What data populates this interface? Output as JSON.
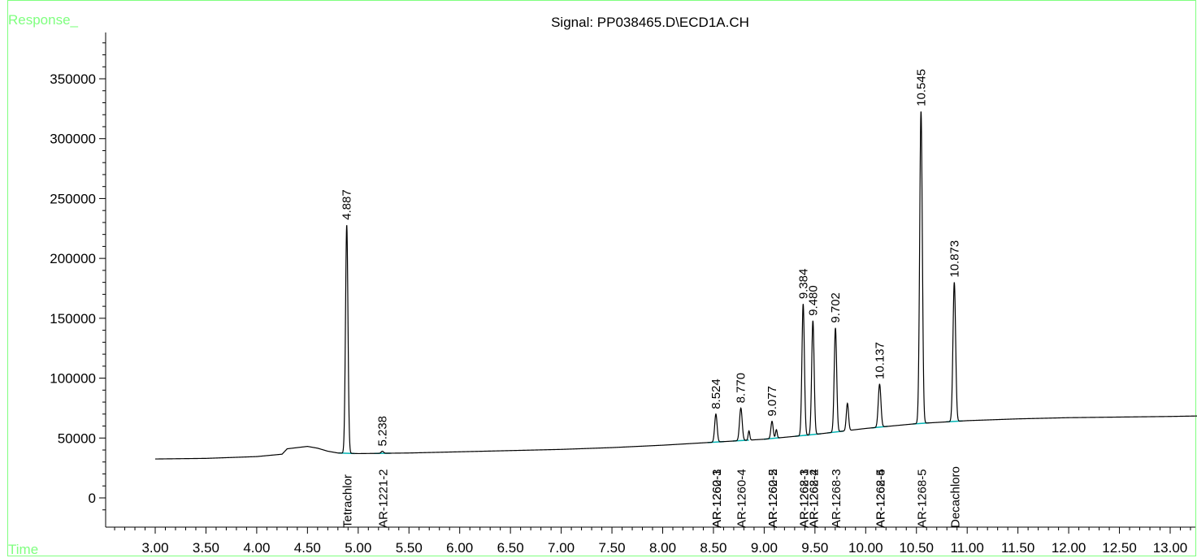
{
  "window": {
    "signal_title": "Signal: PP038465.D\\ECD1A.CH",
    "y_axis_label": "Response_",
    "x_axis_label": "Time"
  },
  "colors": {
    "frame": "#7fff7f",
    "trace": "#000000",
    "baseline": "#00b4b4",
    "text": "#000000"
  },
  "chart_data": {
    "type": "line",
    "title": "Signal: PP038465.D\\ECD1A.CH",
    "xlabel": "Time",
    "ylabel": "Response_",
    "xlim": [
      2.3,
      13.33
    ],
    "ylim": [
      -20000,
      382000
    ],
    "x_ticks": [
      "3.00",
      "3.50",
      "4.00",
      "4.50",
      "5.00",
      "5.50",
      "6.00",
      "6.50",
      "7.00",
      "7.50",
      "8.00",
      "8.50",
      "9.00",
      "9.50",
      "10.00",
      "10.50",
      "11.00",
      "11.50",
      "12.00",
      "12.50",
      "13.00"
    ],
    "y_ticks": [
      "0",
      "50000",
      "100000",
      "150000",
      "200000",
      "250000",
      "300000",
      "350000"
    ],
    "baseline_points": [
      [
        3.0,
        32500
      ],
      [
        3.5,
        33000
      ],
      [
        4.0,
        34500
      ],
      [
        4.25,
        36500
      ],
      [
        4.3,
        41000
      ],
      [
        4.4,
        42000
      ],
      [
        4.5,
        43000
      ],
      [
        4.6,
        41500
      ],
      [
        4.7,
        39000
      ],
      [
        4.8,
        37500
      ],
      [
        5.0,
        37000
      ],
      [
        5.5,
        37500
      ],
      [
        6.0,
        38500
      ],
      [
        6.5,
        39500
      ],
      [
        7.0,
        40500
      ],
      [
        7.5,
        42000
      ],
      [
        8.0,
        44000
      ],
      [
        8.5,
        46500
      ],
      [
        9.0,
        49000
      ],
      [
        9.5,
        53000
      ],
      [
        10.0,
        58000
      ],
      [
        10.5,
        62000
      ],
      [
        11.0,
        64500
      ],
      [
        11.5,
        66000
      ],
      [
        12.0,
        67000
      ],
      [
        12.5,
        67500
      ],
      [
        13.0,
        68000
      ],
      [
        13.33,
        68500
      ]
    ],
    "peaks": [
      {
        "rt": 4.887,
        "label": "4.887",
        "height": 228000,
        "width": 0.012
      },
      {
        "rt": 5.238,
        "label": "5.238",
        "height": 39000,
        "width": 0.012
      },
      {
        "rt": 8.524,
        "label": "8.524",
        "height": 70000,
        "width": 0.012
      },
      {
        "rt": 8.77,
        "label": "8.770",
        "height": 75000,
        "width": 0.013
      },
      {
        "rt": 8.85,
        "label": "",
        "height": 56000,
        "width": 0.008
      },
      {
        "rt": 9.077,
        "label": "9.077",
        "height": 64000,
        "width": 0.011
      },
      {
        "rt": 9.12,
        "label": "",
        "height": 57000,
        "width": 0.008
      },
      {
        "rt": 9.384,
        "label": "9.384",
        "height": 162000,
        "width": 0.012
      },
      {
        "rt": 9.48,
        "label": "9.480",
        "height": 148000,
        "width": 0.012
      },
      {
        "rt": 9.702,
        "label": "9.702",
        "height": 142000,
        "width": 0.012
      },
      {
        "rt": 9.82,
        "label": "",
        "height": 79000,
        "width": 0.011
      },
      {
        "rt": 10.137,
        "label": "10.137",
        "height": 95000,
        "width": 0.013
      },
      {
        "rt": 10.545,
        "label": "10.545",
        "height": 323000,
        "width": 0.013
      },
      {
        "rt": 10.873,
        "label": "10.873",
        "height": 180000,
        "width": 0.013
      }
    ],
    "compound_labels": [
      {
        "rt": 4.887,
        "text": "Tetrachlor"
      },
      {
        "rt": 5.238,
        "text": "AR-1221-2"
      },
      {
        "rt": 8.524,
        "text": "AR-1260-1"
      },
      {
        "rt": 8.524,
        "text": "AR-1262-3"
      },
      {
        "rt": 8.77,
        "text": "AR-1260-4"
      },
      {
        "rt": 9.077,
        "text": "AR-1260-2"
      },
      {
        "rt": 9.077,
        "text": "AR-1262-5"
      },
      {
        "rt": 9.384,
        "text": "AR-1262-1"
      },
      {
        "rt": 9.384,
        "text": "AR-1268-3"
      },
      {
        "rt": 9.48,
        "text": "AR-1262-2"
      },
      {
        "rt": 9.48,
        "text": "AR-1268-4"
      },
      {
        "rt": 9.702,
        "text": "AR-1268-3"
      },
      {
        "rt": 10.137,
        "text": "AR-1262-4"
      },
      {
        "rt": 10.137,
        "text": "AR-1268-5"
      },
      {
        "rt": 10.545,
        "text": "AR-1268-5"
      },
      {
        "rt": 10.873,
        "text": "Decachloro"
      }
    ]
  }
}
